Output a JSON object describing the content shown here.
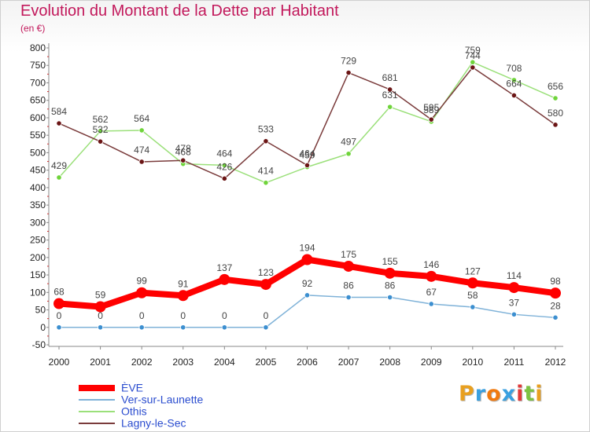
{
  "chart_data": {
    "type": "line",
    "title": "Evolution du Montant de la Dette par Habitant",
    "subtitle": "(en €)",
    "x": [
      "2000",
      "2001",
      "2002",
      "2003",
      "2004",
      "2005",
      "2006",
      "2007",
      "2008",
      "2009",
      "2010",
      "2011",
      "2012"
    ],
    "ylim": [
      -50,
      800
    ],
    "yticks": [
      -50,
      0,
      50,
      100,
      150,
      200,
      250,
      300,
      350,
      400,
      450,
      500,
      550,
      600,
      650,
      700,
      750,
      800
    ],
    "grid": false,
    "legend_position": "bottom-left",
    "series": [
      {
        "name": "ÈVE",
        "color": "#ff0000",
        "marker": "#ff0000",
        "values": [
          68,
          59,
          99,
          91,
          137,
          123,
          194,
          175,
          155,
          146,
          127,
          114,
          98
        ]
      },
      {
        "name": "Ver-sur-Launette",
        "color": "#7fb2d8",
        "marker": "#3c8fd0",
        "values": [
          0,
          0,
          0,
          0,
          0,
          0,
          92,
          86,
          86,
          67,
          58,
          37,
          28
        ]
      },
      {
        "name": "Othis",
        "color": "#9be07a",
        "marker": "#6fd43a",
        "values": [
          429,
          562,
          564,
          468,
          464,
          414,
          459,
          497,
          631,
          589,
          759,
          708,
          656
        ]
      },
      {
        "name": "Lagny-le-Sec",
        "color": "#7a3b3b",
        "marker": "#6b1515",
        "values": [
          584,
          532,
          474,
          478,
          426,
          533,
          464,
          729,
          681,
          595,
          744,
          664,
          580
        ]
      }
    ]
  },
  "logo": {
    "letters": [
      "P",
      "r",
      "o",
      "x",
      "i",
      "t",
      "i"
    ],
    "colors": [
      "#e8a020",
      "#3aa0e0",
      "#f07a10",
      "#3aa0e0",
      "#e03a3a",
      "#7cc242",
      "#e8a020"
    ]
  }
}
